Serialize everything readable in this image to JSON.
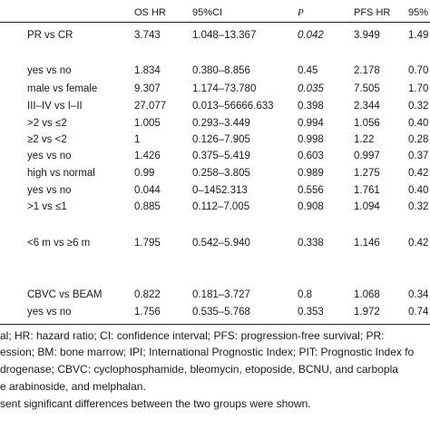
{
  "header": {
    "os_hr": "OS HR",
    "ci": "95%CI",
    "p": "P",
    "pfs_hr": "PFS HR",
    "ci2": "95%"
  },
  "rows": [
    {
      "comp": "PR vs CR",
      "os_hr": "3.743",
      "ci": "1.048–13.367",
      "p": "0.042",
      "p_italic": true,
      "pfs_hr": "3.949",
      "ci2": "1.49"
    },
    {
      "comp": "yes vs no",
      "os_hr": "1.834",
      "ci": "0.380–8.856",
      "p": "0.45",
      "p_italic": false,
      "pfs_hr": "2.178",
      "ci2": "0.70"
    },
    {
      "comp": "male vs female",
      "os_hr": "9.307",
      "ci": "1.174–73.780",
      "p": "0.035",
      "p_italic": true,
      "pfs_hr": "7.505",
      "ci2": "1.70"
    },
    {
      "comp": "III–IV vs I–II",
      "os_hr": "27.077",
      "ci": "0.013–56666.633",
      "p": "0.398",
      "p_italic": false,
      "pfs_hr": "2.344",
      "ci2": "0.32"
    },
    {
      "comp": ">2 vs ≤2",
      "os_hr": "1.005",
      "ci": "0.293–3.449",
      "p": "0.994",
      "p_italic": false,
      "pfs_hr": "1.056",
      "ci2": "0.40"
    },
    {
      "comp": "≥2 vs <2",
      "os_hr": "1",
      "ci": "0.126–7.905",
      "p": "0.998",
      "p_italic": false,
      "pfs_hr": "1.22",
      "ci2": "0.28"
    },
    {
      "comp": "yes vs no",
      "os_hr": "1.426",
      "ci": "0.375–5.419",
      "p": "0.603",
      "p_italic": false,
      "pfs_hr": "0.997",
      "ci2": "0.37"
    },
    {
      "comp": "high vs normal",
      "os_hr": "0.99",
      "ci": "0.258–3.805",
      "p": "0.989",
      "p_italic": false,
      "pfs_hr": "1.275",
      "ci2": "0.42"
    },
    {
      "comp": "yes vs no",
      "os_hr": "0.044",
      "ci": "0–1452.313",
      "p": "0.556",
      "p_italic": false,
      "pfs_hr": "1.761",
      "ci2": "0.40"
    },
    {
      "comp": ">1 vs ≤1",
      "os_hr": "0.885",
      "ci": "0.112–7.005",
      "p": "0.908",
      "p_italic": false,
      "pfs_hr": "1.094",
      "ci2": "0.32"
    },
    {
      "comp": "<6 m vs ≥6 m",
      "os_hr": "1.795",
      "ci": "0.542–5.940",
      "p": "0.338",
      "p_italic": false,
      "pfs_hr": "1.146",
      "ci2": "0.42"
    },
    {
      "comp": "CBVC vs BEAM",
      "os_hr": "0.822",
      "ci": "0.181–3.727",
      "p": "0.8",
      "p_italic": false,
      "pfs_hr": "1.068",
      "ci2": "0.34"
    },
    {
      "comp": "yes vs no",
      "os_hr": "1.756",
      "ci": "0.535–5.768",
      "p": "0.353",
      "p_italic": false,
      "pfs_hr": "1.972",
      "ci2": "0.74"
    }
  ],
  "footnotes": [
    "al; HR: hazard ratio; CI: confidence interval; PFS: progression-free survival; PR:",
    "ession; BM: bone marrow; IPI; International Prognostic Index; PIT: Prognostic Index fo",
    "drogenase; CBVC: cyclophosphamide, bleomycin, etoposide, BCNU, and carbopla",
    "e arabinoside, and melphalan.",
    "sent significant differences between the two groups were shown."
  ]
}
